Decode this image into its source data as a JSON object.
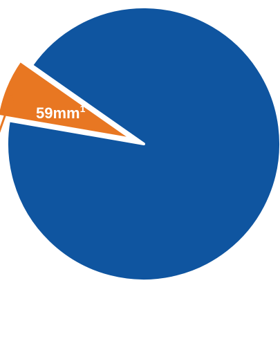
{
  "chart_data": {
    "type": "pie",
    "slices": [
      {
        "value": 0.93,
        "color": "#0f55a0",
        "exploded": false
      },
      {
        "value": 0.07,
        "color": "#e87722",
        "exploded": true
      }
    ],
    "annotations": [
      {
        "text": "59mm",
        "superscript": "1",
        "target_slice": 0
      }
    ],
    "arrow": {
      "target_slice": 1,
      "color": "#e87722"
    }
  }
}
